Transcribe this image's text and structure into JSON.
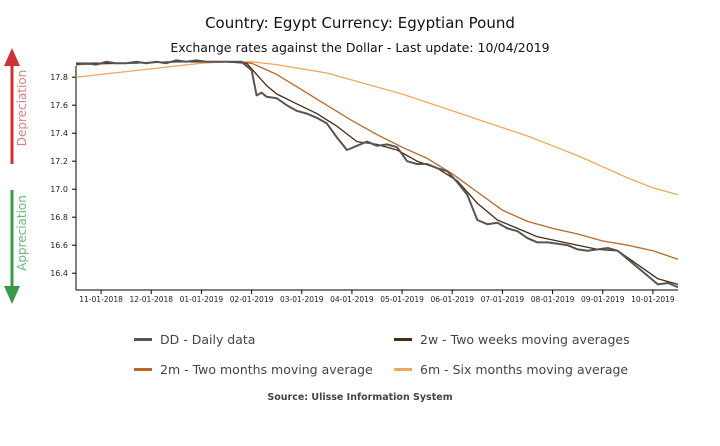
{
  "header": {
    "title": "Country: Egypt Currency: Egyptian Pound",
    "subtitle": "Exchange rates against the Dollar - Last update: 10/04/2019"
  },
  "side_labels": {
    "depreciation": "Depreciation",
    "appreciation": "Appreciation"
  },
  "footer": {
    "source": "Source: Ulisse Information System"
  },
  "colors": {
    "daily": "#555555",
    "two_weeks": "#4a2a12",
    "two_months": "#b8692a",
    "six_months": "#f0a85e",
    "depreciation_arrow": "#cc3333",
    "appreciation_arrow": "#3a9a4a",
    "axis": "#000000"
  },
  "chart_data": {
    "type": "line",
    "x_range": [
      0,
      12
    ],
    "x_ticks": [
      {
        "x": 0.5,
        "label": "11-01-2018"
      },
      {
        "x": 1.5,
        "label": "12-01-2018"
      },
      {
        "x": 2.5,
        "label": "01-01-2019"
      },
      {
        "x": 3.5,
        "label": "02-01-2019"
      },
      {
        "x": 4.5,
        "label": "03-01-2019"
      },
      {
        "x": 5.5,
        "label": "04-01-2019"
      },
      {
        "x": 6.5,
        "label": "05-01-2019"
      },
      {
        "x": 7.5,
        "label": "06-01-2019"
      },
      {
        "x": 8.5,
        "label": "07-01-2019"
      },
      {
        "x": 9.5,
        "label": "08-01-2019"
      },
      {
        "x": 10.5,
        "label": "09-01-2019"
      },
      {
        "x": 11.5,
        "label": "10-01-2019"
      }
    ],
    "y_range": [
      16.28,
      17.88
    ],
    "y_ticks": [
      {
        "v": 16.4,
        "label": "16.4"
      },
      {
        "v": 16.6,
        "label": "16.6"
      },
      {
        "v": 16.8,
        "label": "16.8"
      },
      {
        "v": 17.0,
        "label": "17.0"
      },
      {
        "v": 17.2,
        "label": "17.2"
      },
      {
        "v": 17.4,
        "label": "17.4"
      },
      {
        "v": 17.6,
        "label": "17.6"
      },
      {
        "v": 17.8,
        "label": "17.8"
      }
    ],
    "series": [
      {
        "key": "daily",
        "name": "DD - Daily data",
        "points": [
          [
            0.0,
            17.89
          ],
          [
            0.2,
            17.9
          ],
          [
            0.4,
            17.89
          ],
          [
            0.6,
            17.91
          ],
          [
            0.8,
            17.9
          ],
          [
            1.0,
            17.9
          ],
          [
            1.2,
            17.91
          ],
          [
            1.4,
            17.9
          ],
          [
            1.6,
            17.91
          ],
          [
            1.8,
            17.9
          ],
          [
            2.0,
            17.92
          ],
          [
            2.2,
            17.91
          ],
          [
            2.4,
            17.92
          ],
          [
            2.6,
            17.91
          ],
          [
            2.8,
            17.91
          ],
          [
            3.0,
            17.91
          ],
          [
            3.3,
            17.91
          ],
          [
            3.5,
            17.85
          ],
          [
            3.6,
            17.67
          ],
          [
            3.7,
            17.69
          ],
          [
            3.8,
            17.66
          ],
          [
            4.0,
            17.65
          ],
          [
            4.2,
            17.6
          ],
          [
            4.4,
            17.56
          ],
          [
            4.6,
            17.54
          ],
          [
            4.8,
            17.51
          ],
          [
            5.0,
            17.47
          ],
          [
            5.2,
            17.37
          ],
          [
            5.4,
            17.28
          ],
          [
            5.6,
            17.31
          ],
          [
            5.8,
            17.34
          ],
          [
            6.0,
            17.31
          ],
          [
            6.2,
            17.32
          ],
          [
            6.4,
            17.3
          ],
          [
            6.6,
            17.2
          ],
          [
            6.8,
            17.18
          ],
          [
            7.0,
            17.18
          ],
          [
            7.2,
            17.15
          ],
          [
            7.4,
            17.13
          ],
          [
            7.6,
            17.05
          ],
          [
            7.8,
            16.96
          ],
          [
            8.0,
            16.78
          ],
          [
            8.2,
            16.75
          ],
          [
            8.4,
            16.76
          ],
          [
            8.6,
            16.72
          ],
          [
            8.8,
            16.7
          ],
          [
            9.0,
            16.65
          ],
          [
            9.2,
            16.62
          ],
          [
            9.4,
            16.62
          ],
          [
            9.6,
            16.61
          ],
          [
            9.8,
            16.6
          ],
          [
            10.0,
            16.57
          ],
          [
            10.2,
            16.56
          ],
          [
            10.4,
            16.57
          ],
          [
            10.6,
            16.58
          ],
          [
            10.8,
            16.56
          ],
          [
            11.0,
            16.5
          ],
          [
            11.2,
            16.44
          ],
          [
            11.4,
            16.38
          ],
          [
            11.6,
            16.32
          ],
          [
            11.8,
            16.33
          ],
          [
            12.0,
            16.3
          ]
        ]
      },
      {
        "key": "two_weeks",
        "name": "2w - Two weeks moving averages",
        "points": [
          [
            0.0,
            17.9
          ],
          [
            1.0,
            17.9
          ],
          [
            2.0,
            17.91
          ],
          [
            3.0,
            17.91
          ],
          [
            3.4,
            17.9
          ],
          [
            3.6,
            17.82
          ],
          [
            3.8,
            17.74
          ],
          [
            4.0,
            17.68
          ],
          [
            4.4,
            17.61
          ],
          [
            4.8,
            17.54
          ],
          [
            5.2,
            17.45
          ],
          [
            5.6,
            17.34
          ],
          [
            6.0,
            17.32
          ],
          [
            6.4,
            17.28
          ],
          [
            6.8,
            17.2
          ],
          [
            7.2,
            17.15
          ],
          [
            7.6,
            17.06
          ],
          [
            8.0,
            16.9
          ],
          [
            8.4,
            16.78
          ],
          [
            8.8,
            16.72
          ],
          [
            9.2,
            16.66
          ],
          [
            9.6,
            16.63
          ],
          [
            10.0,
            16.6
          ],
          [
            10.4,
            16.57
          ],
          [
            10.8,
            16.56
          ],
          [
            11.2,
            16.46
          ],
          [
            11.6,
            16.36
          ],
          [
            12.0,
            16.32
          ]
        ]
      },
      {
        "key": "two_months",
        "name": "2m - Two months moving average",
        "points": [
          [
            0.0,
            17.89
          ],
          [
            1.0,
            17.9
          ],
          [
            2.0,
            17.91
          ],
          [
            3.0,
            17.91
          ],
          [
            3.5,
            17.9
          ],
          [
            4.0,
            17.82
          ],
          [
            4.5,
            17.71
          ],
          [
            5.0,
            17.6
          ],
          [
            5.5,
            17.49
          ],
          [
            6.0,
            17.39
          ],
          [
            6.5,
            17.3
          ],
          [
            7.0,
            17.22
          ],
          [
            7.5,
            17.11
          ],
          [
            8.0,
            16.98
          ],
          [
            8.5,
            16.85
          ],
          [
            9.0,
            16.77
          ],
          [
            9.5,
            16.72
          ],
          [
            10.0,
            16.68
          ],
          [
            10.5,
            16.63
          ],
          [
            11.0,
            16.6
          ],
          [
            11.5,
            16.56
          ],
          [
            12.0,
            16.5
          ]
        ]
      },
      {
        "key": "six_months",
        "name": "6m - Six months moving average",
        "points": [
          [
            0.0,
            17.8
          ],
          [
            0.5,
            17.82
          ],
          [
            1.0,
            17.84
          ],
          [
            1.5,
            17.86
          ],
          [
            2.0,
            17.88
          ],
          [
            2.5,
            17.9
          ],
          [
            3.0,
            17.91
          ],
          [
            3.5,
            17.91
          ],
          [
            4.0,
            17.89
          ],
          [
            4.5,
            17.86
          ],
          [
            5.0,
            17.83
          ],
          [
            5.5,
            17.78
          ],
          [
            6.0,
            17.73
          ],
          [
            6.5,
            17.68
          ],
          [
            7.0,
            17.62
          ],
          [
            7.5,
            17.56
          ],
          [
            8.0,
            17.5
          ],
          [
            8.5,
            17.44
          ],
          [
            9.0,
            17.38
          ],
          [
            9.5,
            17.31
          ],
          [
            10.0,
            17.24
          ],
          [
            10.5,
            17.16
          ],
          [
            11.0,
            17.08
          ],
          [
            11.5,
            17.01
          ],
          [
            12.0,
            16.96
          ]
        ]
      }
    ]
  }
}
